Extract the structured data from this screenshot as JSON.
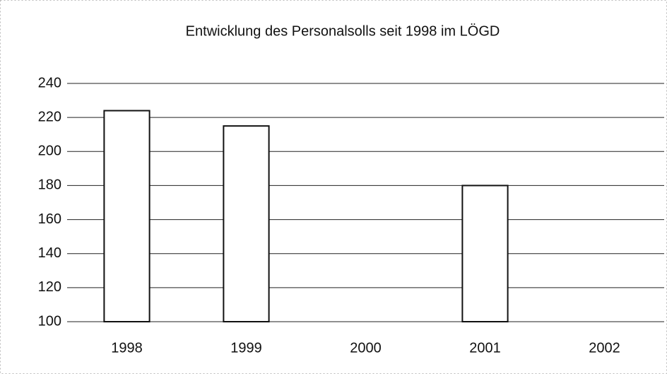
{
  "chart_data": {
    "type": "bar",
    "title": "Entwicklung des Personalsolls seit 1998 im LÖGD",
    "categories": [
      "1998",
      "1999",
      "2000",
      "2001",
      "2002"
    ],
    "values": [
      224,
      215,
      null,
      180,
      null
    ],
    "color": "#ffffff",
    "ylim": [
      100,
      240
    ],
    "yticks": [
      100,
      120,
      140,
      160,
      180,
      200,
      220,
      240
    ],
    "grid": true
  }
}
